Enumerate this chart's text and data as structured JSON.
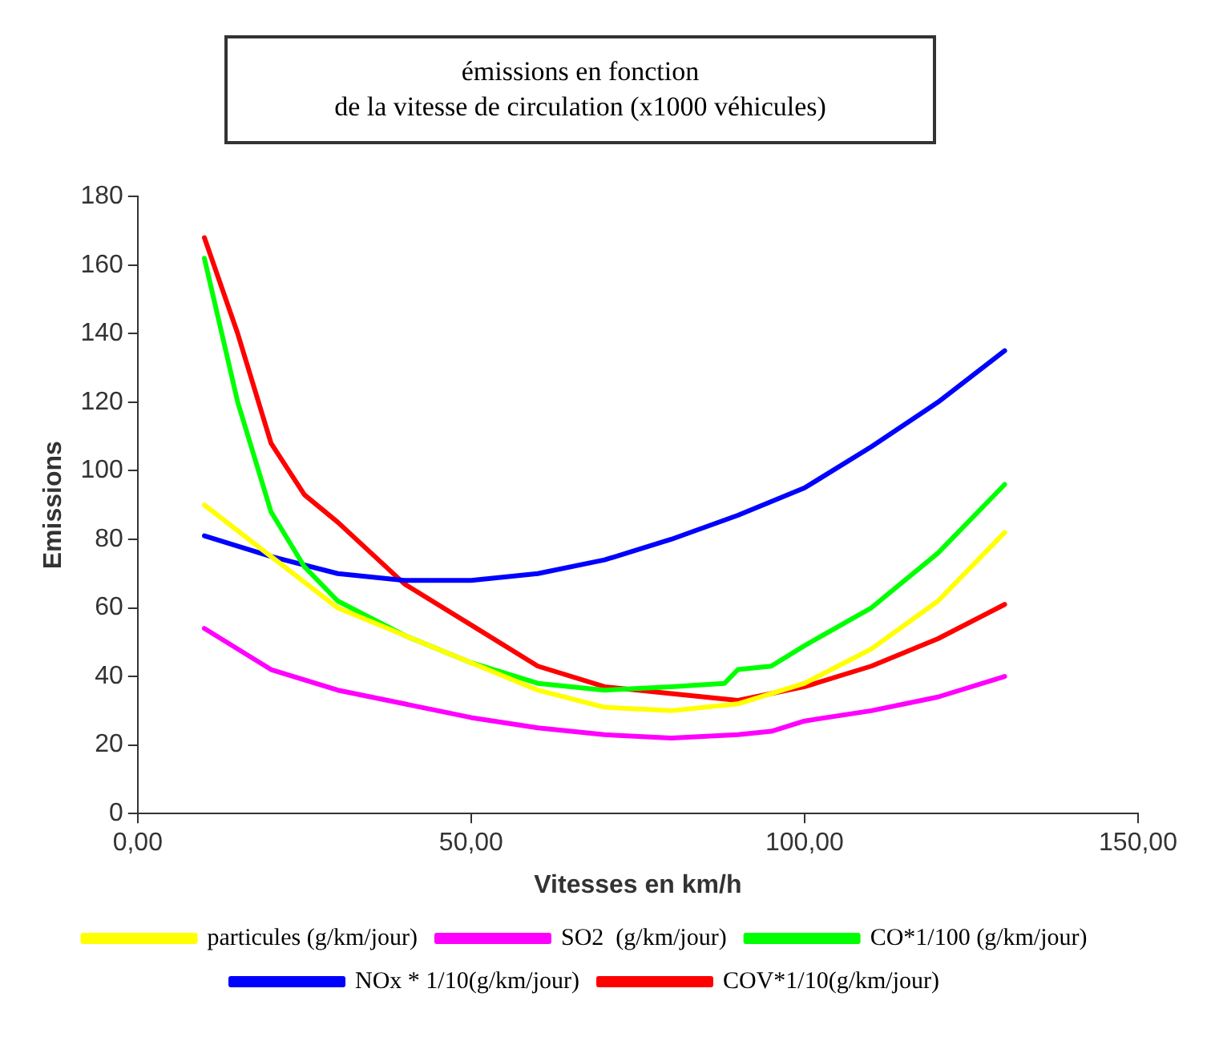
{
  "chart_data": {
    "type": "line",
    "title": "émissions en fonction\nde la vitesse de circulation (x1000 véhicules)",
    "xlabel": "Vitesses en km/h",
    "ylabel": "Emissions",
    "xlim": [
      0,
      150
    ],
    "xticks": [
      {
        "value": 0,
        "label": "0,00"
      },
      {
        "value": 50,
        "label": "50,00"
      },
      {
        "value": 100,
        "label": "100,00"
      },
      {
        "value": 150,
        "label": "150,00"
      }
    ],
    "ylim": [
      0,
      180
    ],
    "yticks": [
      0,
      20,
      40,
      60,
      80,
      100,
      120,
      140,
      160,
      180
    ],
    "grid": false,
    "legend": "bottom",
    "marker": "none",
    "line_style": "solid",
    "series": [
      {
        "name": "particules (g/km/jour)",
        "color": "#ffff00",
        "x": [
          10,
          20,
          30,
          40,
          50,
          60,
          70,
          80,
          90,
          100,
          110,
          120,
          130
        ],
        "values": [
          90,
          75,
          60,
          52,
          44,
          36,
          31,
          30,
          32,
          38,
          48,
          62,
          82
        ]
      },
      {
        "name": "SO2  (g/km/jour)",
        "color": "#ff00ff",
        "x": [
          10,
          20,
          30,
          40,
          50,
          60,
          70,
          80,
          90,
          95,
          100,
          110,
          120,
          130
        ],
        "values": [
          54,
          42,
          36,
          32,
          28,
          25,
          23,
          22,
          23,
          24,
          27,
          30,
          34,
          40
        ]
      },
      {
        "name": "CO*1/100 (g/km/jour)",
        "color": "#00ff00",
        "x": [
          10,
          15,
          20,
          25,
          30,
          40,
          50,
          60,
          70,
          80,
          88,
          90,
          95,
          100,
          110,
          120,
          130
        ],
        "values": [
          162,
          120,
          88,
          72,
          62,
          52,
          44,
          38,
          36,
          37,
          38,
          42,
          43,
          49,
          60,
          76,
          96
        ]
      },
      {
        "name": "NOx * 1/10(g/km/jour)",
        "color": "#0000ff",
        "x": [
          10,
          20,
          30,
          40,
          50,
          60,
          70,
          80,
          90,
          100,
          110,
          120,
          130
        ],
        "values": [
          81,
          75,
          70,
          68,
          68,
          70,
          74,
          80,
          87,
          95,
          107,
          120,
          135
        ]
      },
      {
        "name": "COV*1/10(g/km/jour)",
        "color": "#ff0000",
        "x": [
          10,
          15,
          20,
          25,
          30,
          40,
          50,
          60,
          70,
          80,
          90,
          100,
          110,
          120,
          130
        ],
        "values": [
          168,
          140,
          108,
          93,
          85,
          67,
          55,
          43,
          37,
          35,
          33,
          37,
          43,
          51,
          61
        ]
      }
    ]
  }
}
